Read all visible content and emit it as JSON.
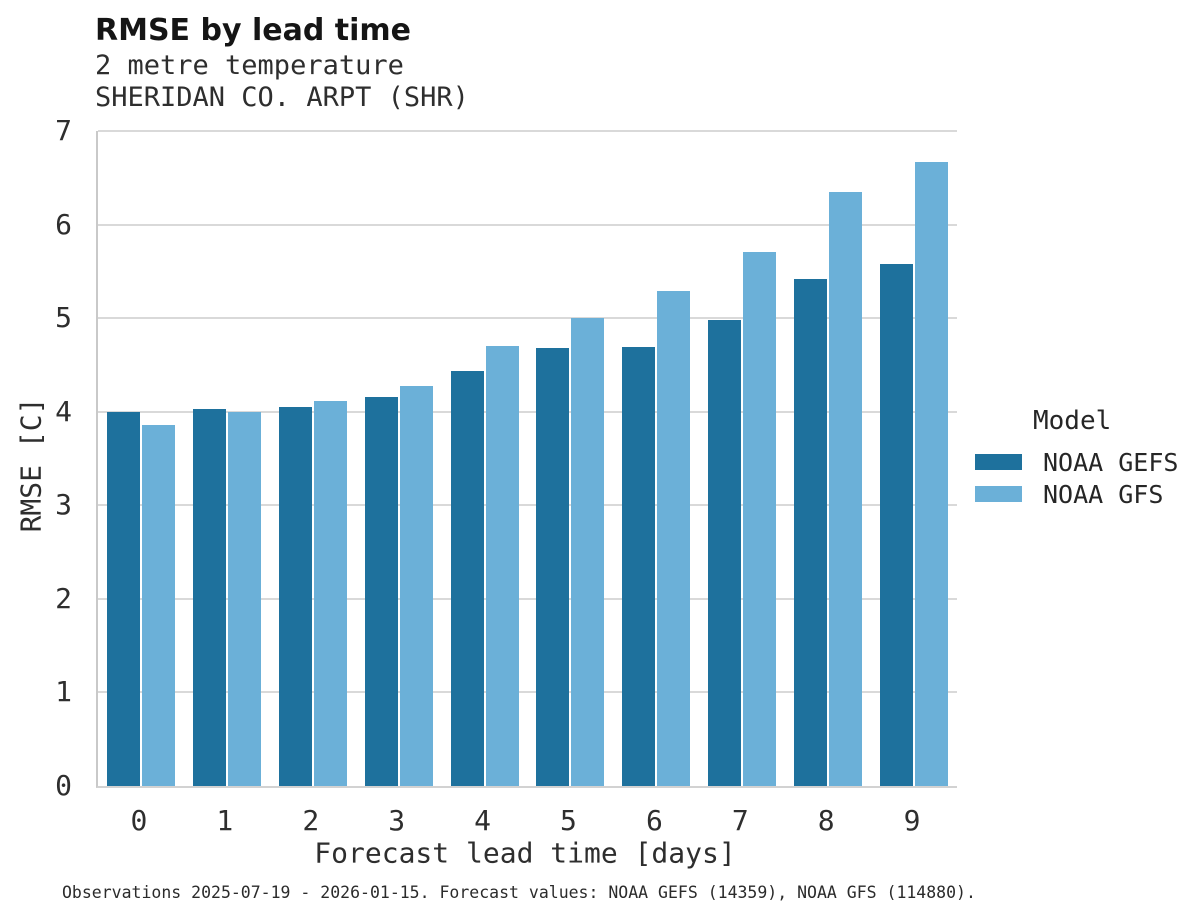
{
  "header": {
    "title": "RMSE by lead time",
    "subtitle_variable": "2 metre temperature",
    "subtitle_station": "SHERIDAN CO. ARPT (SHR)"
  },
  "footer": {
    "text": "Observations 2025-07-19 - 2026-01-15. Forecast values: NOAA GEFS (14359), NOAA GFS (114880)."
  },
  "colors": {
    "noaa_gefs": "#1e719d",
    "noaa_gfs": "#6bb0d8",
    "gridline": "#d9d9d9"
  },
  "chart_data": {
    "type": "bar",
    "title": "RMSE by lead time",
    "subtitle": [
      "2 metre temperature",
      "SHERIDAN CO. ARPT (SHR)"
    ],
    "xlabel": "Forecast lead time [days]",
    "ylabel": "RMSE [C]",
    "categories": [
      "0",
      "1",
      "2",
      "3",
      "4",
      "5",
      "6",
      "7",
      "8",
      "9"
    ],
    "series": [
      {
        "name": "NOAA GEFS",
        "color": "#1e719d",
        "values": [
          4.0,
          4.03,
          4.05,
          4.16,
          4.43,
          4.68,
          4.69,
          4.98,
          5.42,
          5.58
        ]
      },
      {
        "name": "NOAA GFS",
        "color": "#6bb0d8",
        "values": [
          3.86,
          4.0,
          4.11,
          4.27,
          4.7,
          5.0,
          5.29,
          5.71,
          6.35,
          6.67
        ]
      }
    ],
    "ylim": [
      0,
      7
    ],
    "yticks": [
      0,
      1,
      2,
      3,
      4,
      5,
      6,
      7
    ],
    "grid": true,
    "legend_title": "Model",
    "legend_position": "right"
  }
}
